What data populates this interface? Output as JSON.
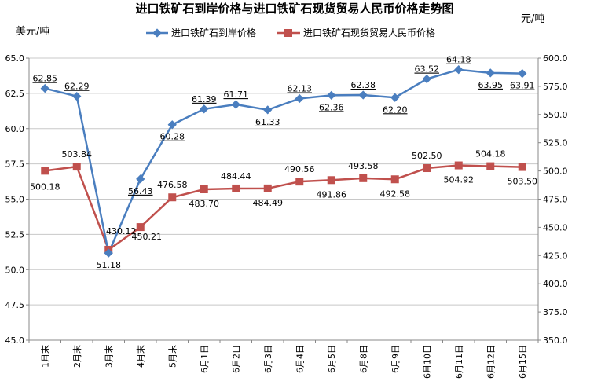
{
  "chart_data": {
    "type": "line",
    "title": "进口铁矿石到岸价格与进口铁矿石现货贸易人民币价格走势图",
    "ylabel_left": "美元/吨",
    "ylabel_right": "元/吨",
    "legend_position": "top",
    "grid": "horizontal",
    "categories": [
      "1月末",
      "2月末",
      "3月末",
      "4月末",
      "5月末",
      "6月1日",
      "6月2日",
      "6月3日",
      "6月4日",
      "6月5日",
      "6月8日",
      "6月9日",
      "6月10日",
      "6月11日",
      "6月12日",
      "6月15日"
    ],
    "ylim_left": [
      45.0,
      65.0
    ],
    "ylim_right": [
      350.0,
      600.0
    ],
    "yticks_left": [
      "45.0",
      "47.5",
      "50.0",
      "52.5",
      "55.0",
      "57.5",
      "60.0",
      "62.5",
      "65.0"
    ],
    "yticks_right": [
      "350.0",
      "375.0",
      "400.0",
      "425.0",
      "450.0",
      "475.0",
      "500.0",
      "525.0",
      "550.0",
      "575.0",
      "600.0"
    ],
    "series": [
      {
        "name": "进口铁矿石到岸价格",
        "axis": "left",
        "color": "#4a7ebf",
        "marker": "diamond",
        "values": [
          62.85,
          62.29,
          51.18,
          56.43,
          60.28,
          61.39,
          61.71,
          61.33,
          62.13,
          62.36,
          62.38,
          62.2,
          63.52,
          64.18,
          63.95,
          63.91
        ],
        "labels": [
          "62.85",
          "62.29",
          "51.18",
          "56.43",
          "60.28",
          "61.39",
          "61.71",
          "61.33",
          "62.13",
          "62.36",
          "62.38",
          "62.20",
          "63.52",
          "64.18",
          "63.95",
          "63.91"
        ]
      },
      {
        "name": "进口铁矿石现货贸易人民币价格",
        "axis": "right",
        "color": "#c0504d",
        "marker": "square",
        "values": [
          500.18,
          503.84,
          430.12,
          450.21,
          476.58,
          483.7,
          484.44,
          484.49,
          490.56,
          491.86,
          493.58,
          492.58,
          502.5,
          504.92,
          504.18,
          503.5
        ],
        "labels": [
          "500.18",
          "503.84",
          "430.12",
          "450.21",
          "476.58",
          "483.70",
          "484.44",
          "484.49",
          "490.56",
          "491.86",
          "493.58",
          "492.58",
          "502.50",
          "504.92",
          "504.18",
          "503.50"
        ]
      }
    ]
  }
}
